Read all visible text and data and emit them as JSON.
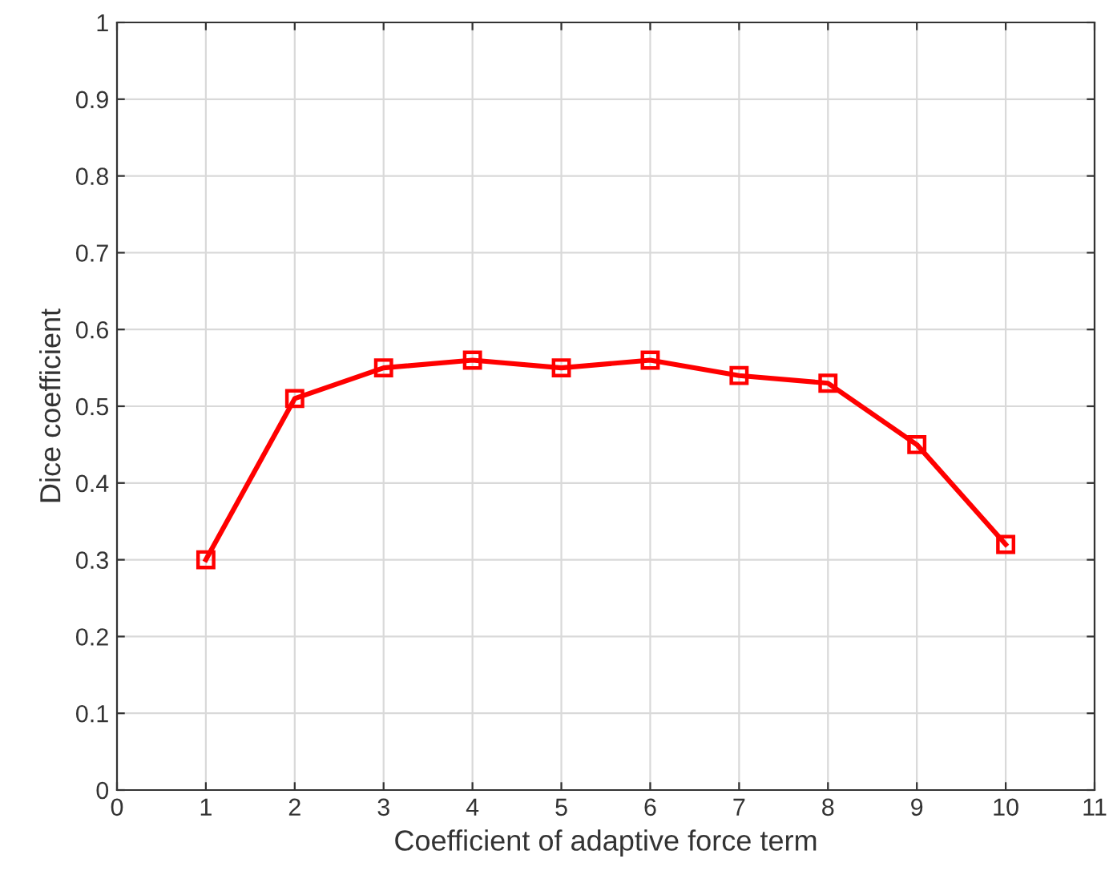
{
  "chart_data": {
    "type": "line",
    "xlabel": "Coefficient of adaptive force term",
    "ylabel": "Dice coefficient",
    "x": [
      1,
      2,
      3,
      4,
      5,
      6,
      7,
      8,
      9,
      10
    ],
    "series": [
      {
        "color": "#ff0000",
        "values": [
          0.3,
          0.51,
          0.55,
          0.56,
          0.55,
          0.56,
          0.54,
          0.53,
          0.45,
          0.32
        ]
      }
    ],
    "xlim": [
      0,
      11
    ],
    "xticks": [
      0,
      1,
      2,
      3,
      4,
      5,
      6,
      7,
      8,
      9,
      10,
      11
    ],
    "ylim": [
      0,
      1
    ],
    "yticks": [
      0,
      0.1,
      0.2,
      0.3,
      0.4,
      0.5,
      0.6,
      0.7,
      0.8,
      0.9,
      1
    ],
    "grid": true,
    "marker": "square",
    "line_style": "solid"
  }
}
